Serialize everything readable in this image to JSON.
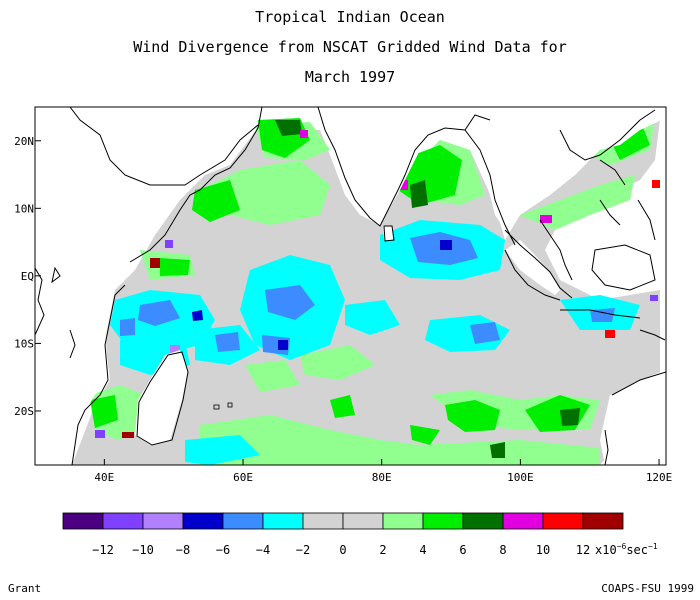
{
  "title": {
    "line1": "Tropical Indian Ocean",
    "line2": "Wind Divergence from NSCAT Gridded Wind Data for",
    "line3": "March 1997"
  },
  "credits": {
    "left": "Grant",
    "right": "COAPS-FSU 1999"
  },
  "colors": {
    "land_outline": "#000000",
    "masked_land": "#ffffff",
    "grid_tick": "#000000"
  },
  "chart_data": {
    "type": "heatmap",
    "variable": "wind divergence",
    "x_axis": {
      "range": [
        30,
        121
      ],
      "ticks": [
        40,
        60,
        80,
        100,
        120
      ],
      "tick_labels": [
        "40E",
        "60E",
        "80E",
        "100E",
        "120E"
      ]
    },
    "y_axis": {
      "range": [
        -28,
        25
      ],
      "ticks": [
        20,
        10,
        0,
        -10,
        -20
      ],
      "tick_labels": [
        "20N",
        "10N",
        "EQ",
        "10S",
        "20S"
      ]
    },
    "colorbar": {
      "labels": [
        "-12",
        "-10",
        "-8",
        "-6",
        "-4",
        "-2",
        "0",
        "2",
        "4",
        "6",
        "8",
        "10",
        "12"
      ],
      "unit_base": "x10",
      "unit_exp": "-6",
      "unit_tail": "sec",
      "unit_tail_exp": "-1",
      "colors": [
        "#4b0082",
        "#8040ff",
        "#b080ff",
        "#0000cd",
        "#3c8cff",
        "#00ffff",
        "#d3d3d3",
        "#d3d3d3",
        "#90ff90",
        "#00ee00",
        "#007000",
        "#e000e0",
        "#ff0000",
        "#a00000"
      ]
    },
    "field_regions": [
      {
        "level": "0",
        "color": "#d3d3d3",
        "lon_range": [
          34,
          108
        ],
        "lat_range": [
          -28,
          15
        ]
      },
      {
        "level": "2",
        "color": "#90ff90",
        "lon_range": [
          58,
          84
        ],
        "lat_range": [
          -28,
          -20
        ]
      },
      {
        "level": "4",
        "color": "#00ee00",
        "lon_range": [
          59,
          66
        ],
        "lat_range": [
          18,
          24
        ]
      },
      {
        "level": "-4",
        "color": "#00ffff",
        "lon_range": [
          50,
          78
        ],
        "lat_range": [
          -12,
          -2
        ]
      },
      {
        "level": "-6",
        "color": "#3c8cff",
        "lon_range": [
          84,
          98
        ],
        "lat_range": [
          0,
          4
        ]
      }
    ]
  }
}
